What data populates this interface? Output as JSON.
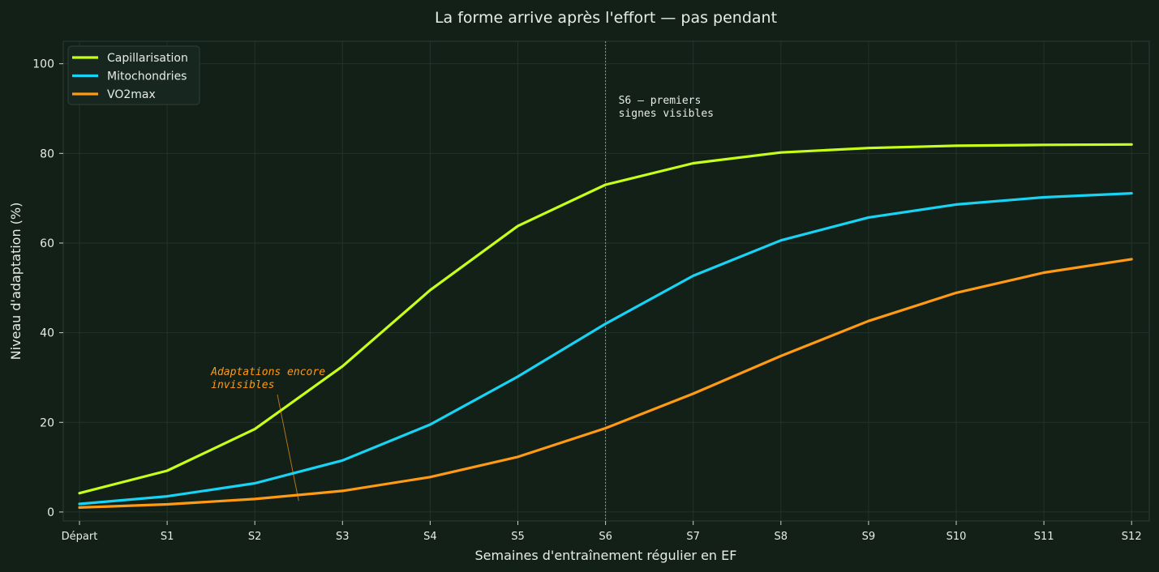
{
  "chart_data": {
    "type": "line",
    "title": "La forme arrive après l'effort — pas pendant",
    "xlabel": "Semaines d'entraînement régulier en EF",
    "ylabel": "Niveau d'adaptation (%)",
    "categories": [
      "Départ",
      "S1",
      "S2",
      "S3",
      "S4",
      "S5",
      "S6",
      "S7",
      "S8",
      "S9",
      "S10",
      "S11",
      "S12"
    ],
    "ylim": [
      -2,
      105
    ],
    "yticks": [
      0,
      20,
      40,
      60,
      80,
      100
    ],
    "grid": true,
    "legend_position": "top-left",
    "series": [
      {
        "name": "Capillarisation",
        "color": "#c6ff1a",
        "values": [
          4.2,
          9.2,
          18.5,
          32.5,
          49.5,
          63.8,
          73.0,
          77.8,
          80.2,
          81.2,
          81.7,
          81.9,
          82.0
        ]
      },
      {
        "name": "Mitochondries",
        "color": "#17d4f5",
        "values": [
          1.8,
          3.5,
          6.4,
          11.5,
          19.5,
          30.2,
          42.0,
          52.7,
          60.6,
          65.7,
          68.6,
          70.2,
          71.1
        ]
      },
      {
        "name": "VO2max",
        "color": "#ff9a14",
        "values": [
          1.0,
          1.7,
          2.9,
          4.7,
          7.8,
          12.3,
          18.7,
          26.4,
          34.8,
          42.6,
          48.9,
          53.4,
          56.4
        ]
      }
    ],
    "annotations": [
      {
        "text": "S6 — premiers signes visibles",
        "lines": [
          "S6 — premiers",
          "signes visibles"
        ],
        "x": "S6",
        "y": 90,
        "color": "#e6ece6"
      },
      {
        "text": "Adaptations encore invisibles",
        "lines": [
          "Adaptations encore",
          "invisibles"
        ],
        "x": 1.5,
        "y": 30,
        "arrow_to_x": 2.5,
        "arrow_to_y": 2.5,
        "color": "#ff9a14"
      }
    ],
    "vline": {
      "x": "S6",
      "color": "#8a9a8e"
    }
  }
}
